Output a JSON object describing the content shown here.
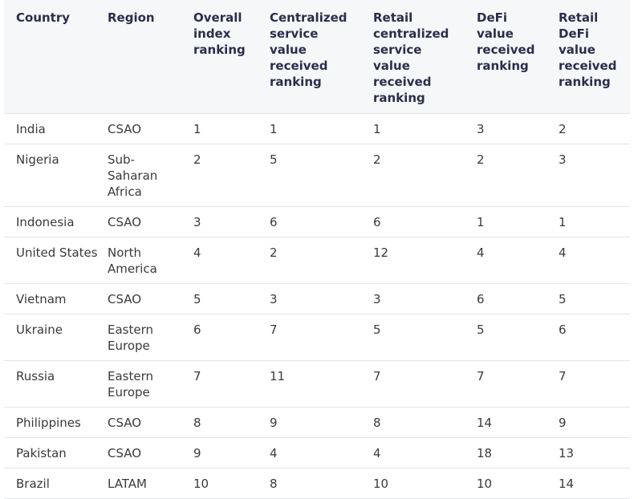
{
  "table": {
    "header": [
      "Country",
      "Region",
      "Overall index ranking",
      "Centralized service value received ranking",
      "Retail centralized service value received ranking",
      "DeFi value received ranking",
      "Retail DeFi value received ranking"
    ],
    "rows": [
      [
        "India",
        "CSAO",
        1,
        1,
        1,
        3,
        2
      ],
      [
        "Nigeria",
        "Sub-Saharan Africa",
        2,
        5,
        2,
        2,
        3
      ],
      [
        "Indonesia",
        "CSAO",
        3,
        6,
        6,
        1,
        1
      ],
      [
        "United States",
        "North America",
        4,
        2,
        12,
        4,
        4
      ],
      [
        "Vietnam",
        "CSAO",
        5,
        3,
        3,
        6,
        5
      ],
      [
        "Ukraine",
        "Eastern Europe",
        6,
        7,
        5,
        5,
        6
      ],
      [
        "Russia",
        "Eastern Europe",
        7,
        11,
        7,
        7,
        7
      ],
      [
        "Philippines",
        "CSAO",
        8,
        9,
        8,
        14,
        9
      ],
      [
        "Pakistan",
        "CSAO",
        9,
        4,
        4,
        18,
        13
      ],
      [
        "Brazil",
        "LATAM",
        10,
        8,
        10,
        10,
        14
      ]
    ]
  }
}
